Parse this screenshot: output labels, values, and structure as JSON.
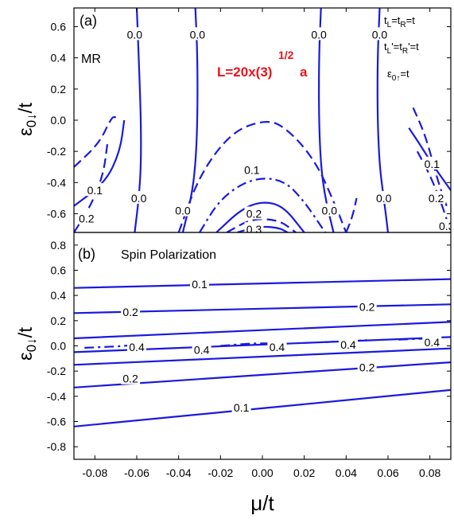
{
  "chart_data": [
    {
      "type": "contour",
      "panel_label": "(a)",
      "quantity_label": "MR",
      "length_label": {
        "base": "L=20x(3)",
        "exponent": "1/2",
        "suffix": "a"
      },
      "conditions": [
        "t_L=t_R=t",
        "t_L'=t_R'=t",
        "ε_{0↑}=t"
      ],
      "conditions_display": {
        "c1": {
          "a": "t",
          "a_sub": "L",
          "b": "=t",
          "b_sub": "R",
          "c": "=t"
        },
        "c2": {
          "a": "t",
          "a_sub": "L",
          "b": "'=t",
          "b_sub": "R",
          "c": "'=t"
        },
        "c3": {
          "a": "ε",
          "a_sub": "0↑",
          "b": "=t"
        }
      },
      "ylabel": {
        "base": "ε",
        "sub": "0↓",
        "rest": "/t"
      },
      "ylim": [
        -0.72,
        0.72
      ],
      "yticks": [
        "0.6",
        "0.4",
        "0.2",
        "0.0",
        "-0.2",
        "-0.4",
        "-0.6"
      ],
      "xlim": [
        -0.09,
        0.09
      ],
      "contours": [
        {
          "level": "0.0",
          "style": "solid",
          "x": [
            -0.06,
            -0.059,
            -0.058,
            -0.058,
            -0.059,
            -0.061
          ],
          "y": [
            0.72,
            0.4,
            0.0,
            -0.3,
            -0.5,
            -0.72
          ]
        },
        {
          "level": "0.0",
          "style": "solid",
          "x": [
            -0.032,
            -0.031,
            -0.031,
            -0.032,
            -0.034,
            -0.038
          ],
          "y": [
            0.72,
            0.4,
            0.0,
            -0.3,
            -0.5,
            -0.72
          ]
        },
        {
          "level": "0.0",
          "style": "solid",
          "x": [
            0.028,
            0.027,
            0.027,
            0.028,
            0.03,
            0.034
          ],
          "y": [
            0.72,
            0.4,
            0.0,
            -0.3,
            -0.5,
            -0.72
          ]
        },
        {
          "level": "0.0",
          "style": "solid",
          "x": [
            0.056,
            0.055,
            0.055,
            0.056,
            0.058,
            0.06
          ],
          "y": [
            0.72,
            0.4,
            0.0,
            -0.3,
            -0.5,
            -0.72
          ]
        },
        {
          "level": "0.1",
          "style": "dashed",
          "x": [
            -0.04,
            -0.03,
            -0.015,
            0.0,
            0.01,
            0.025,
            0.035,
            0.04
          ],
          "y": [
            -0.72,
            -0.35,
            -0.08,
            0.0,
            -0.03,
            -0.25,
            -0.55,
            -0.72
          ]
        },
        {
          "level": "0.1",
          "style": "dashdot",
          "x": [
            -0.03,
            -0.02,
            -0.005,
            0.01,
            0.02,
            0.03
          ],
          "y": [
            -0.72,
            -0.5,
            -0.37,
            -0.38,
            -0.52,
            -0.72
          ]
        },
        {
          "level": "0.2",
          "style": "solid",
          "x": [
            -0.022,
            -0.01,
            0.0,
            0.01,
            0.02
          ],
          "y": [
            -0.72,
            -0.57,
            -0.52,
            -0.55,
            -0.72
          ]
        },
        {
          "level": "0.2",
          "style": "dashed",
          "x": [
            -0.017,
            -0.005,
            0.008,
            0.016
          ],
          "y": [
            -0.72,
            -0.63,
            -0.64,
            -0.72
          ]
        },
        {
          "level": "0.3",
          "style": "solid",
          "x": [
            -0.012,
            -0.002,
            0.008,
            0.012
          ],
          "y": [
            -0.72,
            -0.68,
            -0.69,
            -0.72
          ]
        },
        {
          "level": "0.1",
          "style": "solid",
          "x": [
            -0.09,
            -0.075,
            -0.068,
            -0.066
          ],
          "y": [
            -0.55,
            -0.4,
            -0.2,
            0.0
          ]
        },
        {
          "level": "0.1",
          "style": "dashed",
          "x": [
            -0.09,
            -0.078,
            -0.072,
            -0.07
          ],
          "y": [
            -0.3,
            -0.15,
            0.02,
            0.02
          ]
        },
        {
          "level": "0.2",
          "style": "dashed",
          "x": [
            -0.09,
            -0.082,
            -0.076,
            -0.074
          ],
          "y": [
            -0.72,
            -0.55,
            -0.35,
            -0.15
          ]
        },
        {
          "level": "0.1",
          "style": "solid",
          "x": [
            0.07,
            0.075,
            0.082,
            0.09
          ],
          "y": [
            -0.05,
            -0.15,
            -0.3,
            -0.45
          ]
        },
        {
          "level": "0.1",
          "style": "dashed",
          "x": [
            0.072,
            0.078,
            0.084,
            0.088
          ],
          "y": [
            0.08,
            -0.1,
            -0.4,
            -0.55
          ]
        },
        {
          "level": "0.2",
          "style": "dashed",
          "x": [
            0.074,
            0.08,
            0.086,
            0.09
          ],
          "y": [
            -0.2,
            -0.35,
            -0.55,
            -0.72
          ]
        },
        {
          "level": "0.0",
          "style": "dashed",
          "x": [
            0.04,
            0.043,
            0.045
          ],
          "y": [
            -0.72,
            -0.62,
            -0.5
          ]
        }
      ],
      "contour_labels": [
        {
          "text": "0.0",
          "x": -0.059,
          "y": -0.5
        },
        {
          "text": "0.0",
          "x": -0.031,
          "y": 0.55
        },
        {
          "text": "0.0",
          "x": -0.038,
          "y": -0.58
        },
        {
          "text": "0.0",
          "x": -0.061,
          "y": 0.55
        },
        {
          "text": "0.0",
          "x": 0.027,
          "y": 0.55
        },
        {
          "text": "0.0",
          "x": 0.056,
          "y": 0.55
        },
        {
          "text": "0.0",
          "x": 0.032,
          "y": -0.58
        },
        {
          "text": "0.0",
          "x": 0.058,
          "y": -0.5
        },
        {
          "text": "0.1",
          "x": -0.005,
          "y": -0.32
        },
        {
          "text": "0.2",
          "x": -0.004,
          "y": -0.6
        },
        {
          "text": "0.3",
          "x": -0.004,
          "y": -0.7
        },
        {
          "text": "0.1",
          "x": -0.08,
          "y": -0.45
        },
        {
          "text": "0.2",
          "x": -0.084,
          "y": -0.63
        },
        {
          "text": "0.1",
          "x": 0.081,
          "y": -0.28
        },
        {
          "text": "0.2",
          "x": 0.083,
          "y": -0.5
        },
        {
          "text": "0.3",
          "x": 0.088,
          "y": -0.68
        }
      ]
    },
    {
      "type": "contour",
      "panel_label": "(b)",
      "quantity_label": "Spin Polarization",
      "ylabel": {
        "base": "ε",
        "sub": "0↓",
        "rest": "/t"
      },
      "xlabel": "μ/t",
      "ylim": [
        -0.9,
        0.9
      ],
      "yticks": [
        "0.8",
        "0.6",
        "0.4",
        "0.2",
        "0.0",
        "-0.2",
        "-0.4",
        "-0.6",
        "-0.8"
      ],
      "xlim": [
        -0.09,
        0.09
      ],
      "xticks": [
        "-0.08",
        "-0.06",
        "-0.04",
        "-0.02",
        "0.00",
        "0.02",
        "0.04",
        "0.06",
        "0.08"
      ],
      "contours": [
        {
          "level": "0.1",
          "style": "solid",
          "x": [
            -0.09,
            0.09
          ],
          "y": [
            0.46,
            0.53
          ]
        },
        {
          "level": "0.2",
          "style": "solid",
          "x": [
            -0.09,
            0.09
          ],
          "y": [
            0.26,
            0.33
          ]
        },
        {
          "level": "0.3",
          "style": "solid",
          "x": [
            -0.09,
            0.09
          ],
          "y": [
            0.06,
            0.19
          ]
        },
        {
          "level": "0.3",
          "style": "solid",
          "x": [
            -0.09,
            0.09
          ],
          "y": [
            -0.05,
            0.07
          ]
        },
        {
          "level": "0.2",
          "style": "solid",
          "x": [
            -0.09,
            0.09
          ],
          "y": [
            -0.33,
            -0.13
          ]
        },
        {
          "level": "0.2",
          "style": "solid",
          "x": [
            -0.09,
            0.09
          ],
          "y": [
            -0.15,
            -0.02
          ]
        },
        {
          "level": "0.1",
          "style": "solid",
          "x": [
            -0.09,
            0.09
          ],
          "y": [
            -0.64,
            -0.35
          ]
        },
        {
          "level": "0.4",
          "style": "dashdot",
          "x": [
            -0.085,
            -0.07,
            -0.062
          ],
          "y": [
            -0.015,
            -0.005,
            0.005
          ]
        },
        {
          "level": "0.4",
          "style": "dashdot",
          "x": [
            -0.02,
            -0.005,
            0.005
          ],
          "y": [
            0.0,
            0.02,
            0.02
          ]
        },
        {
          "level": "0.4",
          "style": "dashdot",
          "x": [
            0.03,
            0.042,
            0.05
          ],
          "y": [
            0.03,
            0.04,
            0.045
          ]
        },
        {
          "level": "0.4",
          "style": "dashdot",
          "x": [
            0.065,
            0.074,
            0.08
          ],
          "y": [
            0.05,
            0.055,
            0.06
          ]
        }
      ],
      "contour_labels": [
        {
          "text": "0.1",
          "x": -0.03,
          "y": 0.49
        },
        {
          "text": "0.2",
          "x": -0.063,
          "y": 0.27
        },
        {
          "text": "0.2",
          "x": 0.05,
          "y": 0.31
        },
        {
          "text": "0.4",
          "x": -0.06,
          "y": -0.01
        },
        {
          "text": "0.4",
          "x": -0.029,
          "y": -0.03
        },
        {
          "text": "0.4",
          "x": 0.007,
          "y": -0.01
        },
        {
          "text": "0.4",
          "x": 0.041,
          "y": 0.01
        },
        {
          "text": "0.4",
          "x": 0.081,
          "y": 0.03
        },
        {
          "text": "0.2",
          "x": 0.05,
          "y": -0.17
        },
        {
          "text": "0.2",
          "x": -0.063,
          "y": -0.26
        },
        {
          "text": "0.1",
          "x": -0.01,
          "y": -0.49
        }
      ]
    }
  ]
}
